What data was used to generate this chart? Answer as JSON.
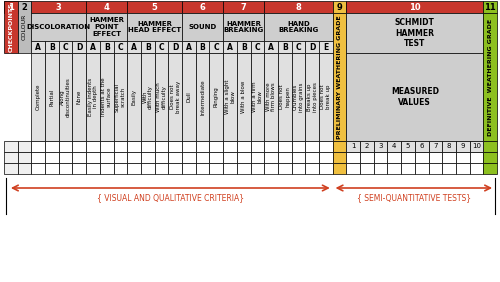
{
  "colors": {
    "header_red": "#C8372D",
    "header_gray": "#BCBCBC",
    "sub_gray": "#CECECE",
    "desc_gray": "#E0E0E0",
    "cell_white": "#FFFFFF",
    "col9_yellow": "#F0C040",
    "col11_green": "#8DC020",
    "arrow_color": "#D04020",
    "text_white": "#FFFFFF",
    "text_black": "#000000"
  },
  "col_num_labels": [
    "1",
    "2",
    "3",
    "4",
    "5",
    "6",
    "7",
    "8",
    "9",
    "10",
    "11"
  ],
  "col_widths_units": [
    1,
    1,
    4,
    3,
    4,
    3,
    3,
    5,
    1,
    10,
    1
  ],
  "category_labels": {
    "3": "DISCOLORATION",
    "4": "HAMMER\nPOINT\nEFFECT",
    "5": "HAMMER\nHEAD EFFECT",
    "6": "SOUND",
    "7": "HAMMER\nBREAKING",
    "8": "HAND\nBREAKING",
    "10a": "SCHMIDT\nHAMMER\nTEST",
    "10b": "MEASURED\nVALUES"
  },
  "col1_label": "CHECKPOINTS",
  "col2_label": "COLOUR",
  "col9_label": "PRELIMINARY WEATHERING GRADE",
  "col11_label": "DEFINITIVE  WEATHERING GRADE",
  "subheaders": {
    "3": [
      "A",
      "B",
      "C",
      "D"
    ],
    "4": [
      "A",
      "B",
      "C"
    ],
    "5": [
      "A",
      "B",
      "C",
      "D"
    ],
    "6": [
      "A",
      "B",
      "C"
    ],
    "7": [
      "A",
      "B",
      "C"
    ],
    "8": [
      "A",
      "B",
      "C",
      "D",
      "E"
    ]
  },
  "descriptions": {
    "3": [
      "Complete",
      "Partial",
      "Along\ndiscontinuities",
      "None"
    ],
    "4": [
      "Easily indents\nin depth",
      "Indents at the\nsurface",
      "Superficial\nscratch"
    ],
    "5": [
      "Easily",
      "With\ndifficulty",
      "With much\ndifficulty",
      "Does not\nbreak away"
    ],
    "6": [
      "Dull",
      "Intermediate",
      "Ringing"
    ],
    "7": [
      "With a slight\nblow",
      "With a blow",
      "With a firm\nblow"
    ],
    "8": [
      "With more\nfirm blows",
      "Does not\nhappen",
      "Crumbles\ninto grains",
      "Breaks up\ninto pieces",
      "Does not\nbreak up"
    ]
  },
  "n_data_rows": 3,
  "arrow_text_left": "{ VISUAL AND QUALITATIVE CRITERIA}",
  "arrow_text_right": "{ SEMI-QUANTITATIVE TESTS}"
}
